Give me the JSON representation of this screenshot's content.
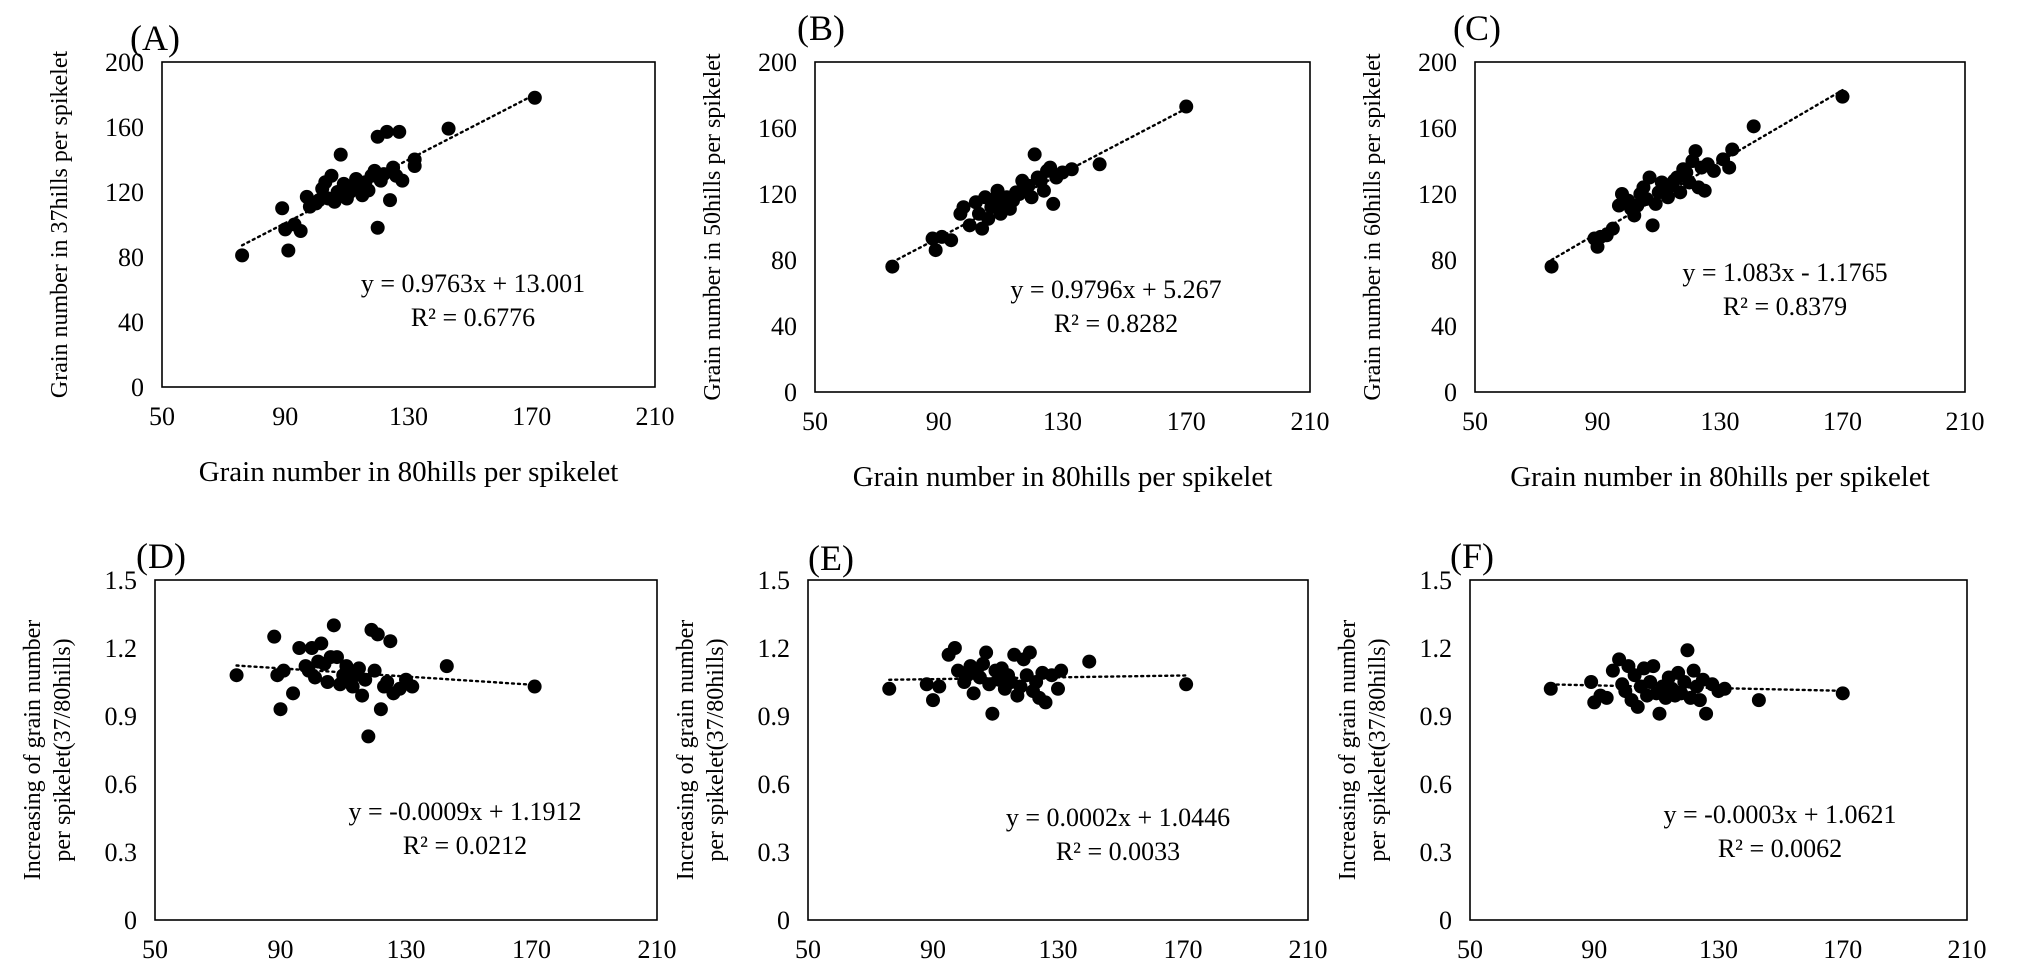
{
  "chart_data": [
    {
      "type": "scatter",
      "panel_label": "(A)",
      "xlabel": "Grain number in 80hills per spikelet",
      "ylabel": "Grain number in 37hills per spikelet",
      "xlim": [
        50,
        210
      ],
      "ylim": [
        0,
        200
      ],
      "x_ticks": [
        "50",
        "90",
        "130",
        "170",
        "210"
      ],
      "y_ticks": [
        "0",
        "40",
        "80",
        "120",
        "160",
        "200"
      ],
      "trendline": {
        "slope": 0.9763,
        "intercept": 13.001,
        "equation": "y = 0.9763x + 13.001",
        "r2": "R² = 0.6776"
      },
      "points": [
        [
          76,
          81
        ],
        [
          89,
          110
        ],
        [
          90,
          97
        ],
        [
          91,
          84
        ],
        [
          93,
          100
        ],
        [
          95,
          96
        ],
        [
          97,
          117
        ],
        [
          98,
          111
        ],
        [
          100,
          113
        ],
        [
          101,
          115
        ],
        [
          102,
          122
        ],
        [
          103,
          126
        ],
        [
          104,
          116
        ],
        [
          105,
          130
        ],
        [
          106,
          114
        ],
        [
          107,
          120
        ],
        [
          108,
          143
        ],
        [
          109,
          125
        ],
        [
          110,
          116
        ],
        [
          111,
          120
        ],
        [
          112,
          124
        ],
        [
          113,
          128
        ],
        [
          114,
          122
        ],
        [
          115,
          118
        ],
        [
          116,
          126
        ],
        [
          117,
          121
        ],
        [
          118,
          130
        ],
        [
          119,
          133
        ],
        [
          120,
          98
        ],
        [
          120,
          154
        ],
        [
          121,
          127
        ],
        [
          122,
          131
        ],
        [
          123,
          157
        ],
        [
          124,
          115
        ],
        [
          125,
          135
        ],
        [
          126,
          130
        ],
        [
          127,
          157
        ],
        [
          128,
          127
        ],
        [
          132,
          136
        ],
        [
          132,
          140
        ],
        [
          143,
          159
        ],
        [
          171,
          178
        ]
      ]
    },
    {
      "type": "scatter",
      "panel_label": "(B)",
      "xlabel": "Grain number in 80hills per spikelet",
      "ylabel": "Grain number in 50hills per spikelet",
      "xlim": [
        50,
        210
      ],
      "ylim": [
        0,
        200
      ],
      "x_ticks": [
        "50",
        "90",
        "130",
        "170",
        "210"
      ],
      "y_ticks": [
        "0",
        "40",
        "80",
        "120",
        "160",
        "200"
      ],
      "trendline": {
        "slope": 0.9796,
        "intercept": 5.267,
        "equation": "y = 0.9796x + 5.267",
        "r2": "R² = 0.8282"
      },
      "points": [
        [
          75,
          76
        ],
        [
          88,
          93
        ],
        [
          89,
          86
        ],
        [
          91,
          94
        ],
        [
          94,
          92
        ],
        [
          97,
          108
        ],
        [
          98,
          112
        ],
        [
          100,
          101
        ],
        [
          102,
          115
        ],
        [
          103,
          108
        ],
        [
          104,
          99
        ],
        [
          105,
          118
        ],
        [
          106,
          105
        ],
        [
          107,
          112
        ],
        [
          108,
          117
        ],
        [
          109,
          122
        ],
        [
          110,
          108
        ],
        [
          111,
          114
        ],
        [
          112,
          118
        ],
        [
          113,
          111
        ],
        [
          114,
          116
        ],
        [
          115,
          121
        ],
        [
          116,
          120
        ],
        [
          117,
          128
        ],
        [
          118,
          123
        ],
        [
          119,
          125
        ],
        [
          120,
          118
        ],
        [
          121,
          144
        ],
        [
          122,
          130
        ],
        [
          123,
          128
        ],
        [
          124,
          122
        ],
        [
          125,
          134
        ],
        [
          126,
          136
        ],
        [
          127,
          114
        ],
        [
          128,
          130
        ],
        [
          130,
          133
        ],
        [
          133,
          135
        ],
        [
          142,
          138
        ],
        [
          170,
          173
        ]
      ]
    },
    {
      "type": "scatter",
      "panel_label": "(C)",
      "xlabel": "Grain number in 80hills per spikelet",
      "ylabel": "Grain number in 60hills per spikelet",
      "xlim": [
        50,
        210
      ],
      "ylim": [
        0,
        200
      ],
      "x_ticks": [
        "50",
        "90",
        "130",
        "170",
        "210"
      ],
      "y_ticks": [
        "0",
        "40",
        "80",
        "120",
        "160",
        "200"
      ],
      "trendline": {
        "slope": 1.083,
        "intercept": -1.1765,
        "equation": "y = 1.083x - 1.1765",
        "r2": "R² = 0.8379"
      },
      "points": [
        [
          75,
          76
        ],
        [
          89,
          93
        ],
        [
          90,
          88
        ],
        [
          91,
          94
        ],
        [
          93,
          95
        ],
        [
          95,
          99
        ],
        [
          97,
          113
        ],
        [
          98,
          120
        ],
        [
          100,
          116
        ],
        [
          101,
          111
        ],
        [
          102,
          107
        ],
        [
          103,
          113
        ],
        [
          104,
          120
        ],
        [
          105,
          124
        ],
        [
          106,
          117
        ],
        [
          107,
          130
        ],
        [
          108,
          101
        ],
        [
          109,
          114
        ],
        [
          110,
          121
        ],
        [
          111,
          127
        ],
        [
          112,
          123
        ],
        [
          113,
          118
        ],
        [
          114,
          125
        ],
        [
          115,
          128
        ],
        [
          116,
          130
        ],
        [
          117,
          121
        ],
        [
          118,
          135
        ],
        [
          119,
          133
        ],
        [
          120,
          127
        ],
        [
          121,
          140
        ],
        [
          122,
          146
        ],
        [
          123,
          124
        ],
        [
          124,
          136
        ],
        [
          125,
          122
        ],
        [
          126,
          138
        ],
        [
          128,
          134
        ],
        [
          131,
          141
        ],
        [
          133,
          136
        ],
        [
          134,
          147
        ],
        [
          141,
          161
        ],
        [
          170,
          179
        ]
      ]
    },
    {
      "type": "scatter",
      "panel_label": "(D)",
      "xlabel": "",
      "ylabel": "Increasing of grain number per spikelet(37/80hills)",
      "ylabel_lines": [
        "Increasing of grain number",
        "per spikelet(37/80hills)"
      ],
      "xlim": [
        50,
        210
      ],
      "ylim": [
        0,
        1.5
      ],
      "x_ticks": [
        "50",
        "90",
        "130",
        "170",
        "210"
      ],
      "y_ticks": [
        "0",
        "0.3",
        "0.6",
        "0.9",
        "1.2",
        "1.5"
      ],
      "trendline": {
        "slope": -0.0009,
        "intercept": 1.1912,
        "equation": "y = -0.0009x + 1.1912",
        "r2": "R² = 0.0212"
      },
      "points": [
        [
          76,
          1.08
        ],
        [
          88,
          1.25
        ],
        [
          89,
          1.08
        ],
        [
          90,
          0.93
        ],
        [
          91,
          1.1
        ],
        [
          94,
          1.0
        ],
        [
          96,
          1.2
        ],
        [
          98,
          1.12
        ],
        [
          99,
          1.1
        ],
        [
          100,
          1.2
        ],
        [
          101,
          1.07
        ],
        [
          102,
          1.14
        ],
        [
          103,
          1.22
        ],
        [
          104,
          1.13
        ],
        [
          105,
          1.05
        ],
        [
          106,
          1.16
        ],
        [
          107,
          1.3
        ],
        [
          108,
          1.16
        ],
        [
          109,
          1.04
        ],
        [
          110,
          1.08
        ],
        [
          111,
          1.12
        ],
        [
          112,
          1.06
        ],
        [
          113,
          1.03
        ],
        [
          114,
          1.08
        ],
        [
          115,
          1.11
        ],
        [
          116,
          0.99
        ],
        [
          117,
          1.06
        ],
        [
          118,
          0.81
        ],
        [
          119,
          1.28
        ],
        [
          120,
          1.1
        ],
        [
          121,
          1.26
        ],
        [
          122,
          0.93
        ],
        [
          123,
          1.03
        ],
        [
          124,
          1.05
        ],
        [
          125,
          1.23
        ],
        [
          126,
          1.0
        ],
        [
          128,
          1.02
        ],
        [
          130,
          1.06
        ],
        [
          132,
          1.03
        ],
        [
          143,
          1.12
        ],
        [
          171,
          1.03
        ]
      ]
    },
    {
      "type": "scatter",
      "panel_label": "(E)",
      "xlabel": "",
      "ylabel": "Increasing of grain number per spikelet(37/80hills)",
      "ylabel_lines": [
        "Increasing of grain number",
        "per spikelet(37/80hills)"
      ],
      "xlim": [
        50,
        210
      ],
      "ylim": [
        0,
        1.5
      ],
      "x_ticks": [
        "50",
        "90",
        "130",
        "170",
        "210"
      ],
      "y_ticks": [
        "0",
        "0.3",
        "0.6",
        "0.9",
        "1.2",
        "1.5"
      ],
      "trendline": {
        "slope": 0.0002,
        "intercept": 1.0446,
        "equation": "y = 0.0002x + 1.0446",
        "r2": "R² = 0.0033"
      },
      "points": [
        [
          76,
          1.02
        ],
        [
          88,
          1.04
        ],
        [
          90,
          0.97
        ],
        [
          92,
          1.03
        ],
        [
          95,
          1.17
        ],
        [
          97,
          1.2
        ],
        [
          98,
          1.1
        ],
        [
          100,
          1.05
        ],
        [
          101,
          1.08
        ],
        [
          102,
          1.12
        ],
        [
          103,
          1.0
        ],
        [
          104,
          1.1
        ],
        [
          105,
          1.07
        ],
        [
          106,
          1.13
        ],
        [
          107,
          1.18
        ],
        [
          108,
          1.04
        ],
        [
          109,
          0.91
        ],
        [
          110,
          1.1
        ],
        [
          111,
          1.06
        ],
        [
          112,
          1.11
        ],
        [
          113,
          1.02
        ],
        [
          114,
          1.08
        ],
        [
          115,
          1.05
        ],
        [
          116,
          1.17
        ],
        [
          117,
          0.99
        ],
        [
          118,
          1.03
        ],
        [
          119,
          1.15
        ],
        [
          120,
          1.08
        ],
        [
          121,
          1.18
        ],
        [
          122,
          1.01
        ],
        [
          123,
          1.05
        ],
        [
          124,
          0.98
        ],
        [
          125,
          1.09
        ],
        [
          126,
          0.96
        ],
        [
          128,
          1.08
        ],
        [
          130,
          1.02
        ],
        [
          131,
          1.1
        ],
        [
          140,
          1.14
        ],
        [
          171,
          1.04
        ]
      ]
    },
    {
      "type": "scatter",
      "panel_label": "(F)",
      "xlabel": "",
      "ylabel": "Increasing of grain number per spikelet(37/80hills)",
      "ylabel_lines": [
        "Increasing of grain number",
        "per spikelet(37/80hills)"
      ],
      "xlim": [
        50,
        210
      ],
      "ylim": [
        0,
        1.5
      ],
      "x_ticks": [
        "50",
        "90",
        "130",
        "170",
        "210"
      ],
      "y_ticks": [
        "0",
        "0.3",
        "0.6",
        "0.9",
        "1.2",
        "1.5"
      ],
      "trendline": {
        "slope": -0.0003,
        "intercept": 1.0621,
        "equation": "y = -0.0003x + 1.0621",
        "r2": "R² = 0.0062"
      },
      "points": [
        [
          76,
          1.02
        ],
        [
          89,
          1.05
        ],
        [
          90,
          0.96
        ],
        [
          92,
          0.99
        ],
        [
          94,
          0.98
        ],
        [
          96,
          1.1
        ],
        [
          98,
          1.15
        ],
        [
          99,
          1.04
        ],
        [
          100,
          1.01
        ],
        [
          101,
          1.12
        ],
        [
          102,
          0.97
        ],
        [
          103,
          1.08
        ],
        [
          104,
          0.94
        ],
        [
          105,
          1.03
        ],
        [
          106,
          1.11
        ],
        [
          107,
          0.99
        ],
        [
          108,
          1.05
        ],
        [
          109,
          1.12
        ],
        [
          110,
          1.0
        ],
        [
          111,
          0.91
        ],
        [
          112,
          1.03
        ],
        [
          113,
          0.98
        ],
        [
          114,
          1.07
        ],
        [
          115,
          1.02
        ],
        [
          116,
          0.99
        ],
        [
          117,
          1.09
        ],
        [
          118,
          1.0
        ],
        [
          119,
          1.05
        ],
        [
          120,
          1.19
        ],
        [
          121,
          0.98
        ],
        [
          122,
          1.1
        ],
        [
          123,
          1.03
        ],
        [
          124,
          0.97
        ],
        [
          125,
          1.06
        ],
        [
          126,
          0.91
        ],
        [
          128,
          1.04
        ],
        [
          130,
          1.01
        ],
        [
          132,
          1.02
        ],
        [
          143,
          0.97
        ],
        [
          170,
          1.0
        ]
      ]
    }
  ]
}
